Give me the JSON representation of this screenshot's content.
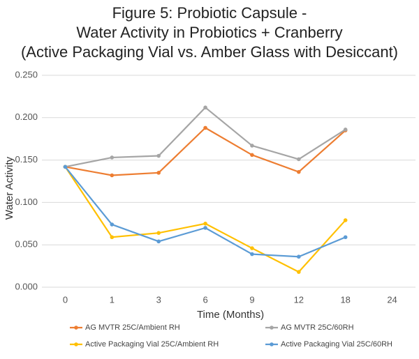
{
  "chart_data": {
    "type": "line",
    "title": [
      "Figure 5: Probiotic Capsule -",
      "Water Activity in Probiotics + Cranberry",
      "(Active Packaging Vial vs. Amber Glass with Desiccant)"
    ],
    "x_label": "Time (Months)",
    "y_label": "Water Activity",
    "categories": [
      "0",
      "1",
      "3",
      "6",
      "9",
      "12",
      "18",
      "24"
    ],
    "series": [
      {
        "name": "AG MVTR 25C/Ambient RH",
        "color": "#ed7d31",
        "values": [
          0.142,
          0.132,
          0.135,
          0.188,
          0.156,
          0.136,
          0.185,
          null
        ]
      },
      {
        "name": "AG MVTR 25C/60RH",
        "color": "#a5a5a5",
        "values": [
          0.142,
          0.153,
          0.155,
          0.212,
          0.167,
          0.151,
          0.186,
          null
        ]
      },
      {
        "name": "Active Packaging Vial 25C/Ambient RH",
        "color": "#ffc000",
        "values": [
          0.142,
          0.059,
          0.064,
          0.075,
          0.046,
          0.018,
          0.079,
          null
        ]
      },
      {
        "name": "Active Packaging Vial 25C/60RH",
        "color": "#5b9bd5",
        "values": [
          0.142,
          0.074,
          0.054,
          0.07,
          0.039,
          0.036,
          0.059,
          null
        ]
      }
    ],
    "ylim": [
      0,
      0.25
    ],
    "yticks": [
      {
        "value": 0,
        "label": "0.000"
      },
      {
        "value": 0.05,
        "label": "0.050"
      },
      {
        "value": 0.1,
        "label": "0.100"
      },
      {
        "value": 0.15,
        "label": "0.150"
      },
      {
        "value": 0.2,
        "label": "0.200"
      },
      {
        "value": 0.25,
        "label": "0.250"
      }
    ],
    "grid": true,
    "legend": "bottom"
  }
}
